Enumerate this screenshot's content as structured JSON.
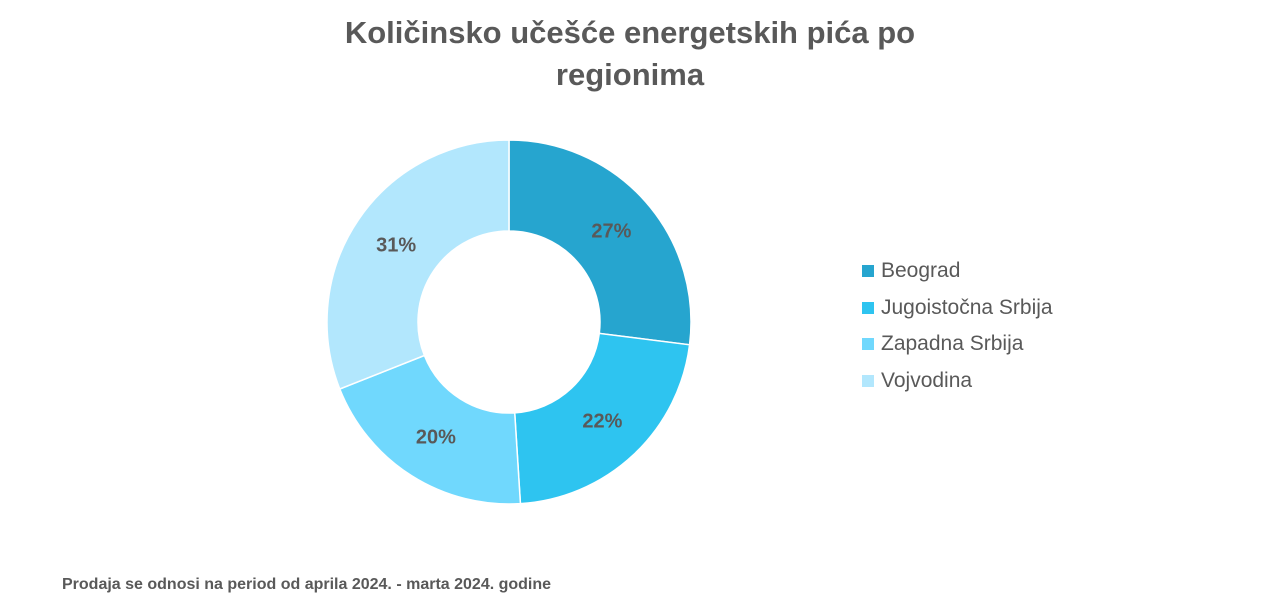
{
  "chart_data": {
    "type": "donut",
    "title_lines": [
      "Količinsko učešće energetskih pića po",
      "regionima"
    ],
    "categories": [
      "Beograd",
      "Jugoistočna Srbija",
      "Zapadna Srbija",
      "Vojvodina"
    ],
    "values": [
      27,
      22,
      20,
      31
    ],
    "labels": [
      "27%",
      "22%",
      "20%",
      "31%"
    ],
    "colors": [
      "#26a5cf",
      "#2ec4f0",
      "#70d8fd",
      "#b2e7fd"
    ],
    "legend_position": "right"
  },
  "footnote": "Prodaja se odnosi na period od aprila 2024. - marta 2024. godine"
}
